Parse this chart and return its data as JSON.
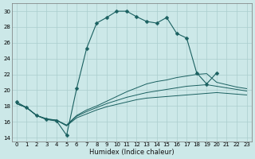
{
  "xlabel": "Humidex (Indice chaleur)",
  "xlim": [
    -0.5,
    23.5
  ],
  "ylim": [
    13.5,
    31
  ],
  "xticks": [
    0,
    1,
    2,
    3,
    4,
    5,
    6,
    7,
    8,
    9,
    10,
    11,
    12,
    13,
    14,
    15,
    16,
    17,
    18,
    19,
    20,
    21,
    22,
    23
  ],
  "yticks": [
    14,
    16,
    18,
    20,
    22,
    24,
    26,
    28,
    30
  ],
  "bg_color": "#cce8e8",
  "grid_color": "#aacece",
  "line_color": "#1a6060",
  "lines": [
    {
      "x": [
        0,
        1,
        2,
        3,
        4,
        5,
        6,
        7,
        8,
        9,
        10,
        11,
        12,
        13,
        14,
        15,
        16,
        17,
        18,
        19,
        20
      ],
      "y": [
        18.5,
        17.8,
        16.8,
        16.3,
        16.1,
        14.3,
        20.2,
        25.3,
        28.5,
        29.2,
        30.0,
        30.0,
        29.3,
        28.7,
        28.5,
        29.2,
        27.2,
        26.6,
        22.2,
        20.8,
        22.2
      ],
      "has_marker": true
    },
    {
      "x": [
        0,
        1,
        2,
        3,
        4,
        5,
        6,
        7,
        8,
        9,
        10,
        11,
        12,
        13,
        14,
        15,
        16,
        17,
        18,
        19,
        20,
        21,
        22,
        23
      ],
      "y": [
        18.3,
        17.8,
        16.8,
        16.3,
        16.2,
        15.5,
        16.5,
        17.0,
        17.5,
        17.9,
        18.2,
        18.5,
        18.8,
        19.0,
        19.1,
        19.2,
        19.3,
        19.4,
        19.5,
        19.6,
        19.7,
        19.6,
        19.5,
        19.4
      ],
      "has_marker": false
    },
    {
      "x": [
        0,
        1,
        2,
        3,
        4,
        5,
        6,
        7,
        8,
        9,
        10,
        11,
        12,
        13,
        14,
        15,
        16,
        17,
        18,
        19,
        20,
        21,
        22,
        23
      ],
      "y": [
        18.3,
        17.8,
        16.8,
        16.3,
        16.2,
        15.5,
        16.7,
        17.3,
        17.8,
        18.3,
        18.7,
        19.1,
        19.4,
        19.7,
        19.9,
        20.1,
        20.3,
        20.5,
        20.6,
        20.7,
        20.5,
        20.3,
        20.1,
        19.9
      ],
      "has_marker": false
    },
    {
      "x": [
        0,
        1,
        2,
        3,
        4,
        5,
        6,
        7,
        8,
        9,
        10,
        11,
        12,
        13,
        14,
        15,
        16,
        17,
        18,
        19,
        20,
        21,
        22,
        23
      ],
      "y": [
        18.3,
        17.8,
        16.8,
        16.4,
        16.2,
        15.6,
        16.8,
        17.5,
        18.0,
        18.6,
        19.2,
        19.8,
        20.3,
        20.8,
        21.1,
        21.3,
        21.6,
        21.8,
        22.0,
        22.1,
        21.0,
        20.7,
        20.4,
        20.2
      ],
      "has_marker": false
    }
  ]
}
